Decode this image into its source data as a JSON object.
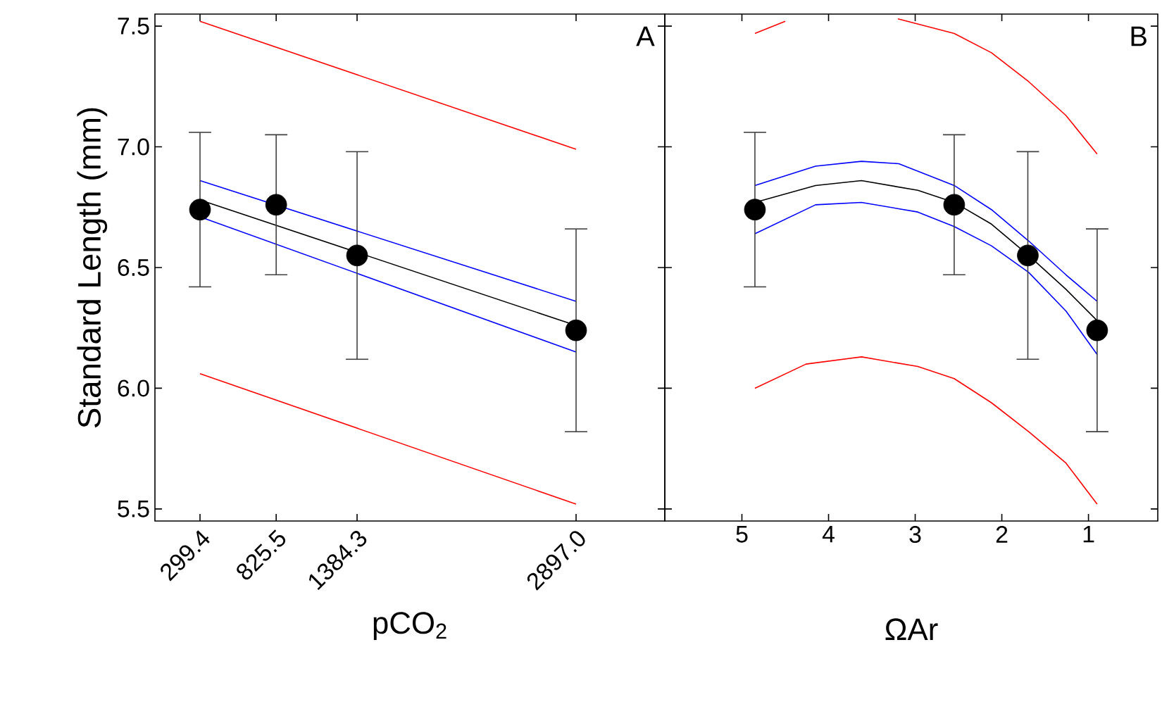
{
  "chart_data": [
    {
      "type": "scatter",
      "xlabel": "pCO$_{2}$",
      "ylabel": "Standard Length (mm)",
      "annotations": [
        "A"
      ],
      "marker": "circle",
      "xlim": [
        -12,
        3510
      ],
      "ylim": [
        5.45,
        7.55
      ],
      "xticks": [
        299.4,
        825.5,
        1384.3,
        {
          "value": 2897,
          "label": "2897.0"
        }
      ],
      "yticks": [
        {
          "value": 5.5,
          "label": "5.5"
        },
        {
          "value": 6.0,
          "label": "6.0"
        },
        {
          "value": 6.5,
          "label": "6.5"
        },
        {
          "value": 7.0,
          "label": "7.0"
        },
        {
          "value": 7.5,
          "label": "7.5"
        }
      ],
      "series": [
        {
          "type": "line",
          "marker": "none",
          "color": "#ff0000",
          "x": [
            299.4,
            2897
          ],
          "values": [
            7.52,
            6.99
          ]
        },
        {
          "type": "line",
          "marker": "none",
          "color": "#ff0000",
          "x": [
            299.4,
            2897
          ],
          "values": [
            6.06,
            5.52
          ]
        },
        {
          "type": "line",
          "marker": "none",
          "color": "#0000ff",
          "x": [
            299.4,
            2897
          ],
          "values": [
            6.86,
            6.36
          ]
        },
        {
          "type": "line",
          "marker": "none",
          "color": "#0000ff",
          "x": [
            299.4,
            2897
          ],
          "values": [
            6.71,
            6.15
          ]
        },
        {
          "type": "line",
          "marker": "none",
          "color": "#000000",
          "x": [
            299.4,
            2897
          ],
          "values": [
            6.78,
            6.26
          ]
        },
        {
          "color": "#000000",
          "x": [
            299.4,
            825.5,
            1384.3,
            2897
          ],
          "values": [
            6.74,
            6.76,
            6.55,
            6.24
          ],
          "errors": [
            0.32,
            0.29,
            0.43,
            0.42
          ]
        }
      ]
    },
    {
      "type": "scatter",
      "xlabel": "ΩAr",
      "annotations": [
        "B"
      ],
      "marker": "circle",
      "tick_labels": "x",
      "xlim": [
        5.89,
        0.2
      ],
      "ylim": [
        5.45,
        7.55
      ],
      "xticks": [
        5,
        4,
        3,
        2,
        1
      ],
      "yticks": [
        {
          "value": 5.5,
          "label": null
        },
        {
          "value": 6.0,
          "label": null
        },
        {
          "value": 6.5,
          "label": null
        },
        {
          "value": 7.0,
          "label": null
        },
        {
          "value": 7.5,
          "label": null
        }
      ],
      "series": [
        {
          "type": "line",
          "marker": "none",
          "color": "#ff0000",
          "x": [
            4.85,
            4.5,
            3.6,
            3.2,
            2.55,
            2.12,
            1.69,
            1.26,
            0.9
          ],
          "values": [
            7.47,
            7.52,
            null,
            7.53,
            7.47,
            7.39,
            7.27,
            7.13,
            6.97
          ]
        },
        {
          "type": "line",
          "marker": "none",
          "color": "#ff0000",
          "x": [
            4.85,
            4.26,
            3.62,
            2.97,
            2.55,
            2.12,
            1.69,
            1.26,
            0.9
          ],
          "values": [
            6.0,
            6.1,
            6.13,
            6.09,
            6.04,
            5.94,
            5.82,
            5.69,
            5.52
          ]
        },
        {
          "type": "line",
          "marker": "none",
          "color": "#0000ff",
          "x": [
            4.85,
            4.15,
            3.62,
            3.19,
            2.55,
            2.12,
            1.69,
            1.26,
            0.9
          ],
          "values": [
            6.84,
            6.92,
            6.94,
            6.93,
            6.84,
            6.74,
            6.61,
            6.47,
            6.36
          ]
        },
        {
          "type": "line",
          "marker": "none",
          "color": "#0000ff",
          "x": [
            4.85,
            4.15,
            3.62,
            2.97,
            2.55,
            2.12,
            1.69,
            1.26,
            0.9
          ],
          "values": [
            6.64,
            6.76,
            6.77,
            6.73,
            6.67,
            6.59,
            6.48,
            6.32,
            6.14
          ]
        },
        {
          "type": "line",
          "marker": "none",
          "color": "#000000",
          "x": [
            4.85,
            4.15,
            3.62,
            2.97,
            2.55,
            2.12,
            1.69,
            1.26,
            0.9
          ],
          "values": [
            6.77,
            6.84,
            6.86,
            6.82,
            6.77,
            6.68,
            6.55,
            6.41,
            6.28
          ]
        },
        {
          "color": "#000000",
          "x": [
            4.85,
            2.55,
            1.7,
            0.9
          ],
          "values": [
            6.74,
            6.76,
            6.55,
            6.24
          ],
          "errors": [
            0.32,
            0.29,
            0.43,
            0.42
          ]
        }
      ]
    }
  ]
}
